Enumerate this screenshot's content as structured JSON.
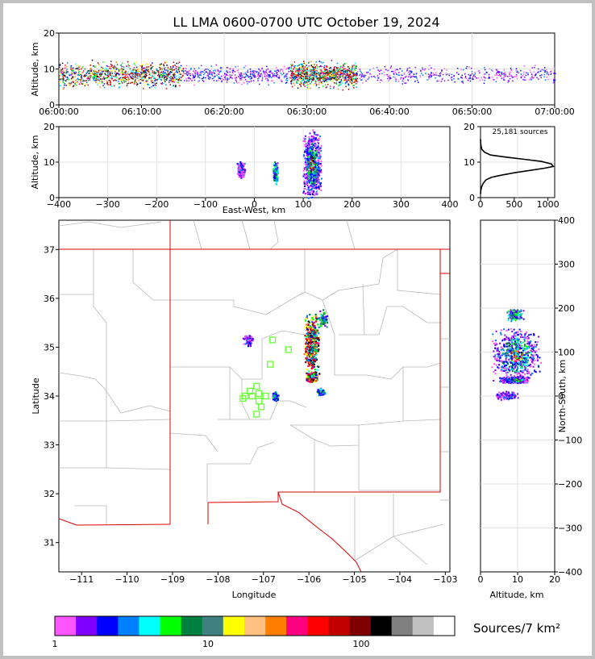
{
  "title": "LL LMA 0600-0700 UTC October 19, 2024",
  "chart_data": [
    {
      "type": "heatmap",
      "panel": "altitude-time",
      "ylabel": "Altitude, km",
      "xlim": [
        "06:00:00",
        "07:00:00"
      ],
      "ylim": [
        0,
        20
      ],
      "xticks": [
        "06:00:00",
        "06:10:00",
        "06:20:00",
        "06:30:00",
        "06:40:00",
        "06:50:00",
        "07:00:00"
      ],
      "yticks": [
        "0",
        "10",
        "20"
      ],
      "grid": true,
      "bands": [
        {
          "t_start_min": 0,
          "t_end_min": 15,
          "alt_low_km": 5,
          "alt_high_km": 12,
          "intensity": "high"
        },
        {
          "t_start_min": 15,
          "t_end_min": 28,
          "alt_low_km": 6,
          "alt_high_km": 11,
          "intensity": "low"
        },
        {
          "t_start_min": 28,
          "t_end_min": 36,
          "alt_low_km": 5,
          "alt_high_km": 12,
          "intensity": "high"
        },
        {
          "t_start_min": 36,
          "t_end_min": 60,
          "alt_low_km": 6,
          "alt_high_km": 11,
          "intensity": "low"
        }
      ]
    },
    {
      "type": "heatmap",
      "panel": "altitude-east-west",
      "xlabel": "East-West, km",
      "ylabel": "Altitude, km",
      "xlim": [
        -400,
        400
      ],
      "ylim": [
        0,
        20
      ],
      "xticks": [
        "−400",
        "−300",
        "−200",
        "−100",
        "0",
        "100",
        "200",
        "300",
        "400"
      ],
      "yticks": [
        "0",
        "10",
        "20"
      ],
      "grid": true,
      "clusters": [
        {
          "x_km": -28,
          "alt_km": 8,
          "width_km": 18,
          "height_km": 5,
          "intensity": "low"
        },
        {
          "x_km": 42,
          "alt_km": 7,
          "width_km": 10,
          "height_km": 7,
          "intensity": "medium"
        },
        {
          "x_km": 117,
          "alt_km": 9.5,
          "width_km": 40,
          "height_km": 20,
          "intensity": "high"
        }
      ]
    },
    {
      "type": "line",
      "panel": "altitude-histogram",
      "annotation": "25,181 sources",
      "xlim": [
        0,
        1100
      ],
      "ylim": [
        0,
        20
      ],
      "xticks": [
        "0",
        "500",
        "1000"
      ],
      "yticks": [
        "0",
        "10",
        "20"
      ],
      "x": [
        0,
        5,
        15,
        40,
        80,
        160,
        300,
        500,
        750,
        950,
        1080,
        1050,
        900,
        650,
        380,
        150,
        60,
        20,
        8,
        2,
        0
      ],
      "y": [
        1,
        2,
        3,
        4,
        5,
        5.7,
        6.3,
        7,
        7.7,
        8.3,
        8.8,
        9.5,
        10.2,
        10.8,
        11.4,
        12,
        12.8,
        13.6,
        14.5,
        15.5,
        16.5
      ]
    },
    {
      "type": "heatmap",
      "panel": "plan-view-map",
      "xlabel": "Longitude",
      "ylabel": "Latitude",
      "xlim": [
        -111.5,
        -102.9
      ],
      "ylim": [
        30.4,
        37.6
      ],
      "xticks": [
        "−111",
        "−110",
        "−109",
        "−108",
        "−107",
        "−106",
        "−105",
        "−104",
        "−103"
      ],
      "yticks": [
        "31",
        "32",
        "33",
        "34",
        "35",
        "36",
        "37"
      ],
      "clusters": [
        {
          "lon": -105.95,
          "lat": 35.1,
          "w_deg": 0.35,
          "h_deg": 1.3,
          "intensity": "high"
        },
        {
          "lon": -105.95,
          "lat": 34.4,
          "w_deg": 0.25,
          "h_deg": 0.2,
          "intensity": "high"
        },
        {
          "lon": -105.7,
          "lat": 35.6,
          "w_deg": 0.2,
          "h_deg": 0.4,
          "intensity": "medium"
        },
        {
          "lon": -105.75,
          "lat": 34.1,
          "w_deg": 0.2,
          "h_deg": 0.15,
          "intensity": "medium"
        },
        {
          "lon": -107.35,
          "lat": 35.15,
          "w_deg": 0.25,
          "h_deg": 0.25,
          "intensity": "low"
        },
        {
          "lon": -106.75,
          "lat": 34.0,
          "w_deg": 0.15,
          "h_deg": 0.2,
          "intensity": "medium"
        }
      ],
      "stations": [
        {
          "lon": -106.8,
          "lat": 35.15
        },
        {
          "lon": -106.45,
          "lat": 34.95
        },
        {
          "lon": -106.85,
          "lat": 34.65
        },
        {
          "lon": -107.15,
          "lat": 34.2
        },
        {
          "lon": -107.3,
          "lat": 34.1
        },
        {
          "lon": -107.4,
          "lat": 34.0
        },
        {
          "lon": -107.25,
          "lat": 34.0
        },
        {
          "lon": -107.1,
          "lat": 34.05
        },
        {
          "lon": -106.95,
          "lat": 34.0
        },
        {
          "lon": -107.45,
          "lat": 33.95
        },
        {
          "lon": -107.1,
          "lat": 33.9
        },
        {
          "lon": -107.05,
          "lat": 33.78
        },
        {
          "lon": -107.15,
          "lat": 33.63
        }
      ],
      "station_color": "#66ff33",
      "state_border_color": "#dd0000"
    },
    {
      "type": "heatmap",
      "panel": "north-south-altitude",
      "xlabel": "Altitude, km",
      "ylabel": "North-South, km",
      "xlim": [
        0,
        20
      ],
      "ylim": [
        -400,
        400
      ],
      "xticks": [
        "0",
        "10",
        "20"
      ],
      "yticks": [
        "−400",
        "−300",
        "−200",
        "−100",
        "0",
        "100",
        "200",
        "300",
        "400"
      ],
      "grid": true,
      "clusters": [
        {
          "alt_km": 9.5,
          "ns_km": 95,
          "width_km": 14,
          "height_km": 130,
          "intensity": "high"
        },
        {
          "alt_km": 9,
          "ns_km": 38,
          "width_km": 8,
          "height_km": 15,
          "intensity": "high"
        },
        {
          "alt_km": 9,
          "ns_km": 185,
          "width_km": 5,
          "height_km": 30,
          "intensity": "medium"
        },
        {
          "alt_km": 7,
          "ns_km": 3,
          "width_km": 6,
          "height_km": 20,
          "intensity": "low"
        }
      ]
    }
  ],
  "colorbar": {
    "label": "Sources/7 km²",
    "ticks": [
      "1",
      "10",
      "100"
    ],
    "colors": [
      "#ff55ff",
      "#8000ff",
      "#0000ff",
      "#0080ff",
      "#00ffff",
      "#00ff00",
      "#008040",
      "#408080",
      "#ffff00",
      "#ffc080",
      "#ff8000",
      "#ff0080",
      "#ff0000",
      "#c00000",
      "#800000",
      "#000000",
      "#808080",
      "#c0c0c0",
      "#ffffff"
    ]
  }
}
